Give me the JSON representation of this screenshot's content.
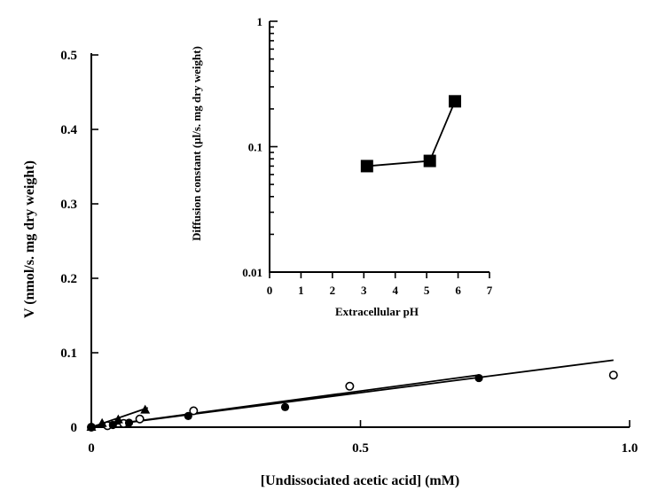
{
  "chart_data": [
    {
      "type": "scatter",
      "xlabel": "[Undissociated acetic acid] (mM)",
      "ylabel": "V (nmol/s. mg dry weight)",
      "xlim": [
        0,
        1.0
      ],
      "ylim": [
        0,
        0.5
      ],
      "x_ticks": [
        "0",
        "0.5",
        "1.0"
      ],
      "y_ticks": [
        "0",
        "0.1",
        "0.2",
        "0.3",
        "0.4",
        "0.5"
      ],
      "series": [
        {
          "marker": "open-circle",
          "points": [
            {
              "x": 0.0,
              "y": 0.0
            },
            {
              "x": 0.03,
              "y": 0.002
            },
            {
              "x": 0.06,
              "y": 0.005
            },
            {
              "x": 0.09,
              "y": 0.011
            },
            {
              "x": 0.19,
              "y": 0.022
            },
            {
              "x": 0.48,
              "y": 0.055
            },
            {
              "x": 0.97,
              "y": 0.07
            }
          ],
          "fit": [
            [
              0.0,
              0.0
            ],
            [
              0.97,
              0.09
            ]
          ]
        },
        {
          "marker": "filled-circle",
          "points": [
            {
              "x": 0.0,
              "y": 0.0
            },
            {
              "x": 0.04,
              "y": 0.003
            },
            {
              "x": 0.07,
              "y": 0.006
            },
            {
              "x": 0.18,
              "y": 0.015
            },
            {
              "x": 0.36,
              "y": 0.027
            },
            {
              "x": 0.72,
              "y": 0.066
            }
          ],
          "fit": [
            [
              0.0,
              0.0
            ],
            [
              0.72,
              0.07
            ]
          ]
        },
        {
          "marker": "filled-triangle",
          "points": [
            {
              "x": 0.0,
              "y": 0.0
            },
            {
              "x": 0.02,
              "y": 0.005
            },
            {
              "x": 0.05,
              "y": 0.01
            },
            {
              "x": 0.1,
              "y": 0.023
            }
          ],
          "fit": [
            [
              0.0,
              0.0
            ],
            [
              0.105,
              0.026
            ]
          ]
        }
      ]
    },
    {
      "type": "line",
      "xlabel": "Extracellular pH",
      "ylabel": "Diffusion constant (µl/s. mg dry weight)",
      "xlim": [
        0,
        7
      ],
      "ylim": [
        0.01,
        1
      ],
      "y_scale": "log",
      "x_ticks": [
        "0",
        "1",
        "2",
        "3",
        "4",
        "5",
        "6",
        "7"
      ],
      "y_ticks": [
        "0.01",
        "0.1",
        "1"
      ],
      "series": [
        {
          "marker": "filled-square",
          "points": [
            {
              "x": 3.1,
              "y": 0.07
            },
            {
              "x": 5.1,
              "y": 0.077
            },
            {
              "x": 5.9,
              "y": 0.23
            }
          ]
        }
      ]
    }
  ]
}
